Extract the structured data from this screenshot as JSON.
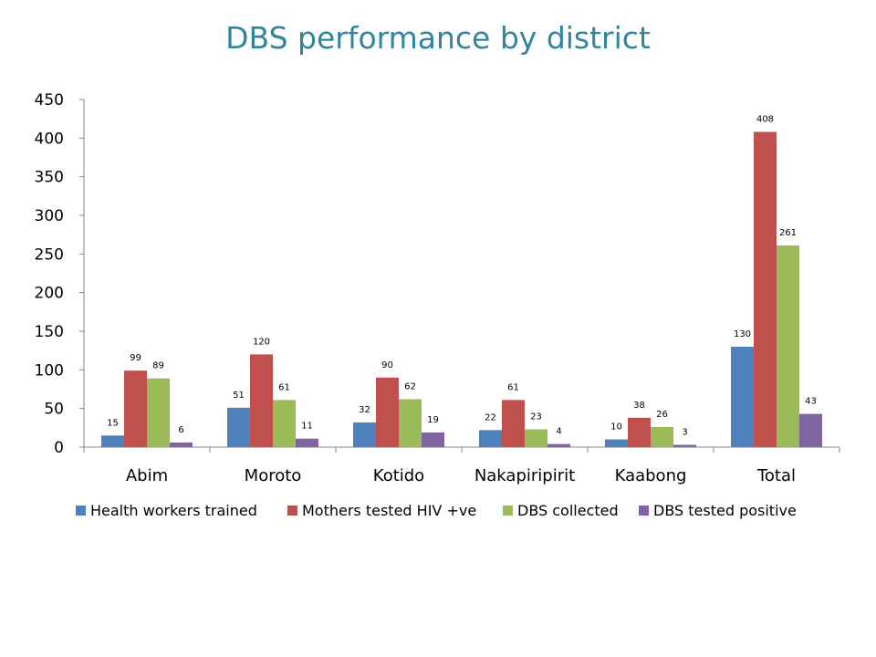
{
  "chart_data": {
    "type": "bar",
    "title": "DBS performance by district",
    "categories": [
      "Abim",
      "Moroto",
      "Kotido",
      "Nakapiripirit",
      "Kaabong",
      "Total"
    ],
    "series": [
      {
        "name": "Health workers trained",
        "color": "#4f81bd",
        "values": [
          15,
          51,
          32,
          22,
          10,
          130
        ]
      },
      {
        "name": "Mothers tested HIV +ve",
        "color": "#c0504d",
        "values": [
          99,
          120,
          90,
          61,
          38,
          408
        ]
      },
      {
        "name": "DBS collected",
        "color": "#9bbb59",
        "values": [
          89,
          61,
          62,
          23,
          26,
          261
        ]
      },
      {
        "name": "DBS tested positive",
        "color": "#8064a2",
        "values": [
          6,
          11,
          19,
          4,
          3,
          43
        ]
      }
    ],
    "ylim": [
      0,
      450
    ],
    "yticks": [
      0,
      50,
      100,
      150,
      200,
      250,
      300,
      350,
      400,
      450
    ],
    "grid": false,
    "legend": "bottom"
  }
}
